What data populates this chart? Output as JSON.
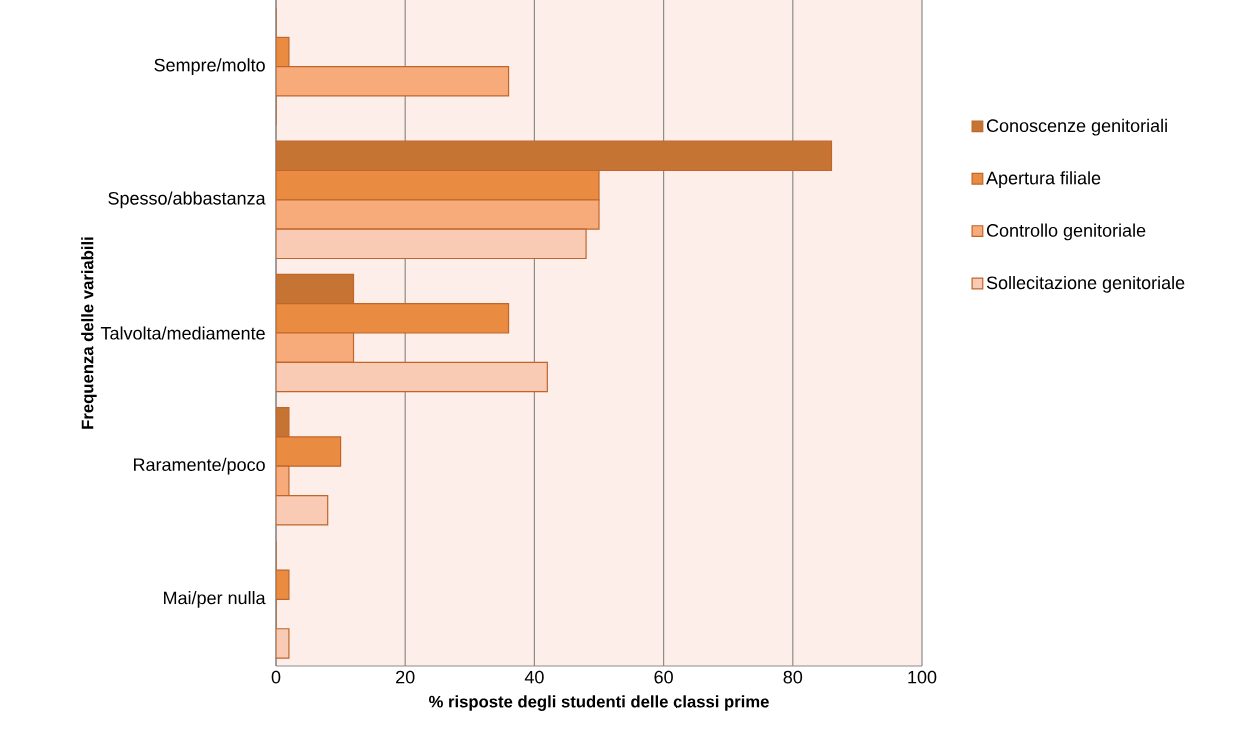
{
  "chart_data": {
    "type": "bar",
    "orientation": "horizontal",
    "xlabel": "% risposte degli studenti delle classi prime",
    "ylabel": "Frequenza delle variabili",
    "categories": [
      "Sempre/molto",
      "Spesso/abbastanza",
      "Talvolta/mediamente",
      "Raramente/poco",
      "Mai/per nulla"
    ],
    "series": [
      {
        "name": "Conoscenze genitoriali",
        "color": "#c57433",
        "values": [
          0,
          86,
          12,
          2,
          0
        ]
      },
      {
        "name": "Apertura filiale",
        "color": "#e98c42",
        "values": [
          2,
          50,
          36,
          10,
          2
        ]
      },
      {
        "name": "Controllo genitoriale",
        "color": "#f7ab7a",
        "values": [
          36,
          50,
          12,
          2,
          0
        ]
      },
      {
        "name": "Sollecitazione genitoriale",
        "color": "#f9cbb5",
        "values": [
          0,
          48,
          42,
          8,
          2
        ]
      }
    ],
    "xlim": [
      0,
      100
    ],
    "xticks": [
      0,
      20,
      40,
      60,
      80,
      100
    ],
    "grid": "x",
    "legend": "right"
  }
}
